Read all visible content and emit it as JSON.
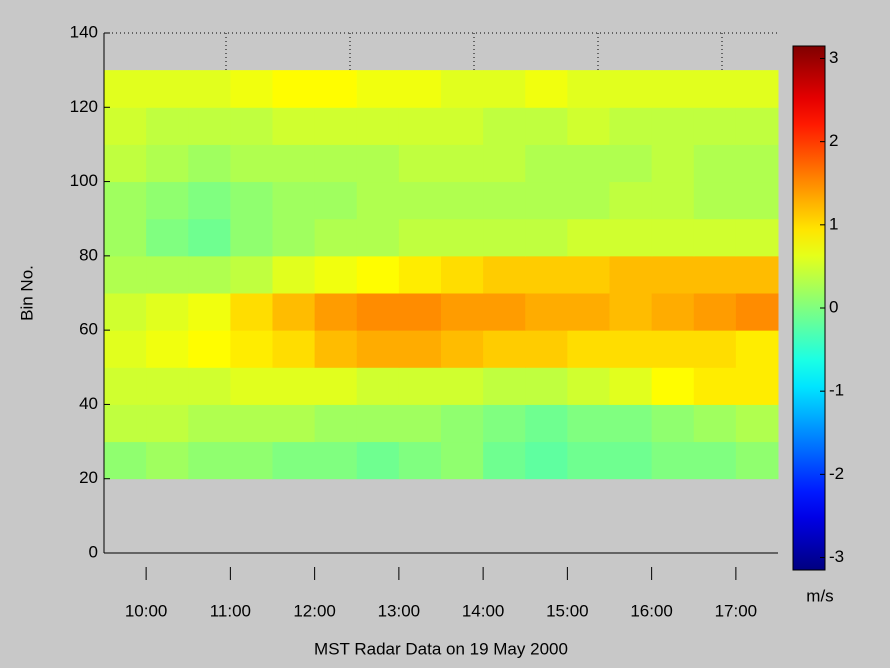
{
  "chart_data": {
    "type": "heatmap",
    "x_label": "MST Radar Data on 19 May 2000",
    "y_label": "Bin No.",
    "colorbar_label": "m/s",
    "colormap": "jet",
    "xlim": [
      9.5,
      17.5
    ],
    "xticks": [
      {
        "value": 10,
        "label": "10:00"
      },
      {
        "value": 11,
        "label": "11:00"
      },
      {
        "value": 12,
        "label": "12:00"
      },
      {
        "value": 13,
        "label": "13:00"
      },
      {
        "value": 14,
        "label": "14:00"
      },
      {
        "value": 15,
        "label": "15:00"
      },
      {
        "value": 16,
        "label": "16:00"
      },
      {
        "value": 17,
        "label": "17:00"
      }
    ],
    "ylim": [
      0,
      140
    ],
    "yticks": [
      0,
      20,
      40,
      60,
      80,
      100,
      120,
      140
    ],
    "clim": [
      -3.15,
      3.15
    ],
    "cticks": [
      -3,
      -2,
      -1,
      0,
      1,
      2,
      3
    ],
    "xbins": [
      9.5,
      10,
      10.5,
      11,
      11.5,
      12,
      12.5,
      13,
      13.5,
      14,
      14.5,
      15,
      15.5,
      16,
      16.5,
      17,
      17.5
    ],
    "ybins": [
      20,
      30,
      40,
      50,
      60,
      70,
      80,
      90,
      100,
      110,
      120,
      130
    ],
    "values": [
      [
        0.1,
        0.2,
        0.1,
        0.1,
        0,
        0,
        -0.1,
        0,
        0.1,
        -0.1,
        -0.2,
        -0.1,
        -0.1,
        0,
        0,
        0.1
      ],
      [
        0.4,
        0.4,
        0.3,
        0.3,
        0.3,
        0.2,
        0.2,
        0.2,
        0.1,
        0,
        -0.1,
        0,
        0,
        0.1,
        0.2,
        0.3
      ],
      [
        0.5,
        0.5,
        0.5,
        0.6,
        0.6,
        0.6,
        0.5,
        0.5,
        0.5,
        0.4,
        0.4,
        0.5,
        0.6,
        0.8,
        0.9,
        0.9
      ],
      [
        0.6,
        0.7,
        0.8,
        0.9,
        1.0,
        1.2,
        1.3,
        1.3,
        1.2,
        1.1,
        1.1,
        1.0,
        1.0,
        1.0,
        1.0,
        0.9
      ],
      [
        0.5,
        0.6,
        0.7,
        1.0,
        1.2,
        1.4,
        1.5,
        1.5,
        1.4,
        1.4,
        1.3,
        1.3,
        1.2,
        1.3,
        1.4,
        1.5
      ],
      [
        0.3,
        0.3,
        0.3,
        0.4,
        0.6,
        0.7,
        0.8,
        0.9,
        1.0,
        1.1,
        1.1,
        1.1,
        1.2,
        1.2,
        1.2,
        1.2
      ],
      [
        0.2,
        0.0,
        -0.1,
        0.1,
        0.2,
        0.3,
        0.3,
        0.4,
        0.4,
        0.4,
        0.4,
        0.5,
        0.5,
        0.5,
        0.5,
        0.5
      ],
      [
        0.2,
        0.1,
        0.0,
        0.1,
        0.2,
        0.2,
        0.3,
        0.3,
        0.3,
        0.3,
        0.3,
        0.3,
        0.4,
        0.4,
        0.3,
        0.3
      ],
      [
        0.4,
        0.3,
        0.2,
        0.3,
        0.3,
        0.3,
        0.3,
        0.4,
        0.4,
        0.4,
        0.3,
        0.3,
        0.3,
        0.4,
        0.3,
        0.3
      ],
      [
        0.5,
        0.4,
        0.4,
        0.4,
        0.5,
        0.5,
        0.5,
        0.5,
        0.5,
        0.4,
        0.4,
        0.5,
        0.4,
        0.4,
        0.4,
        0.4
      ],
      [
        0.6,
        0.6,
        0.6,
        0.7,
        0.8,
        0.8,
        0.7,
        0.7,
        0.6,
        0.6,
        0.7,
        0.6,
        0.6,
        0.6,
        0.6,
        0.6
      ]
    ]
  }
}
